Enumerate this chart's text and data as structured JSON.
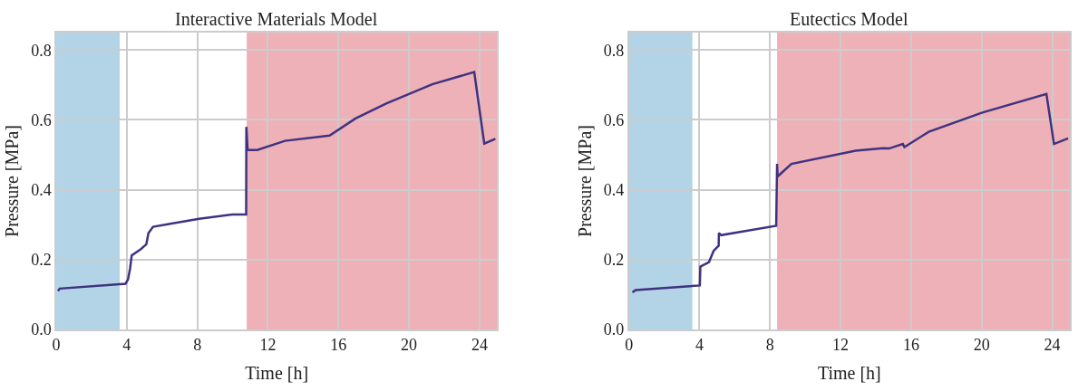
{
  "chart_data": [
    {
      "type": "line",
      "title": "Interactive Materials Model",
      "xlabel": "Time [h]",
      "ylabel": "Pressure [MPa]",
      "xlim": [
        0,
        25
      ],
      "xticks": [
        0,
        4,
        8,
        12,
        16,
        20,
        24
      ],
      "ylim": [
        0,
        0.85
      ],
      "yticks": [
        {
          "value": 0,
          "label": "0.0"
        },
        0.2,
        0.4,
        0.6,
        0.8
      ],
      "grid": true,
      "bands": [
        {
          "axis": "x",
          "from": 0,
          "to": 3.6,
          "color": "#b3d4e6"
        },
        {
          "axis": "x",
          "from": 10.8,
          "to": 25,
          "color": "#eeb1b8"
        }
      ],
      "series": [
        {
          "color": "#3f3280",
          "x": [
            0.1,
            0.2,
            3.93,
            4.07,
            4.19,
            4.28,
            4.8,
            5.11,
            5.23,
            5.49,
            6.54,
            8.1,
            10.0,
            10.77,
            10.78,
            10.85,
            11.4,
            12.97,
            15.5,
            16.97,
            18.71,
            21.32,
            23.7,
            24.27,
            24.9
          ],
          "values": [
            0.11,
            0.117,
            0.131,
            0.143,
            0.175,
            0.212,
            0.23,
            0.244,
            0.276,
            0.294,
            0.303,
            0.317,
            0.329,
            0.329,
            0.58,
            0.514,
            0.514,
            0.54,
            0.555,
            0.604,
            0.647,
            0.702,
            0.737,
            0.532,
            0.546
          ]
        }
      ]
    },
    {
      "type": "line",
      "title": "Eutectics Model",
      "xlabel": "Time [h]",
      "ylabel": "Pressure [MPa]",
      "xlim": [
        0,
        25
      ],
      "xticks": [
        0,
        4,
        8,
        12,
        16,
        20,
        24
      ],
      "ylim": [
        0,
        0.85
      ],
      "yticks": [
        {
          "value": 0,
          "label": "0.0"
        },
        0.2,
        0.4,
        0.6,
        0.8
      ],
      "grid": true,
      "bands": [
        {
          "axis": "x",
          "from": 0,
          "to": 3.6,
          "color": "#b3d4e6"
        },
        {
          "axis": "x",
          "from": 8.4,
          "to": 25,
          "color": "#eeb1b8"
        }
      ],
      "series": [
        {
          "color": "#3f3280",
          "x": [
            0.2,
            0.38,
            4.02,
            4.05,
            4.54,
            4.8,
            5.09,
            5.1,
            5.23,
            8.35,
            8.4,
            8.43,
            9.21,
            12.85,
            14.4,
            14.75,
            15.53,
            15.62,
            17.0,
            20.04,
            23.67,
            24.1,
            24.9
          ],
          "values": [
            0.106,
            0.113,
            0.126,
            0.18,
            0.193,
            0.225,
            0.24,
            0.276,
            0.27,
            0.297,
            0.474,
            0.438,
            0.474,
            0.512,
            0.519,
            0.518,
            0.531,
            0.522,
            0.566,
            0.621,
            0.674,
            0.531,
            0.547
          ]
        }
      ]
    }
  ]
}
